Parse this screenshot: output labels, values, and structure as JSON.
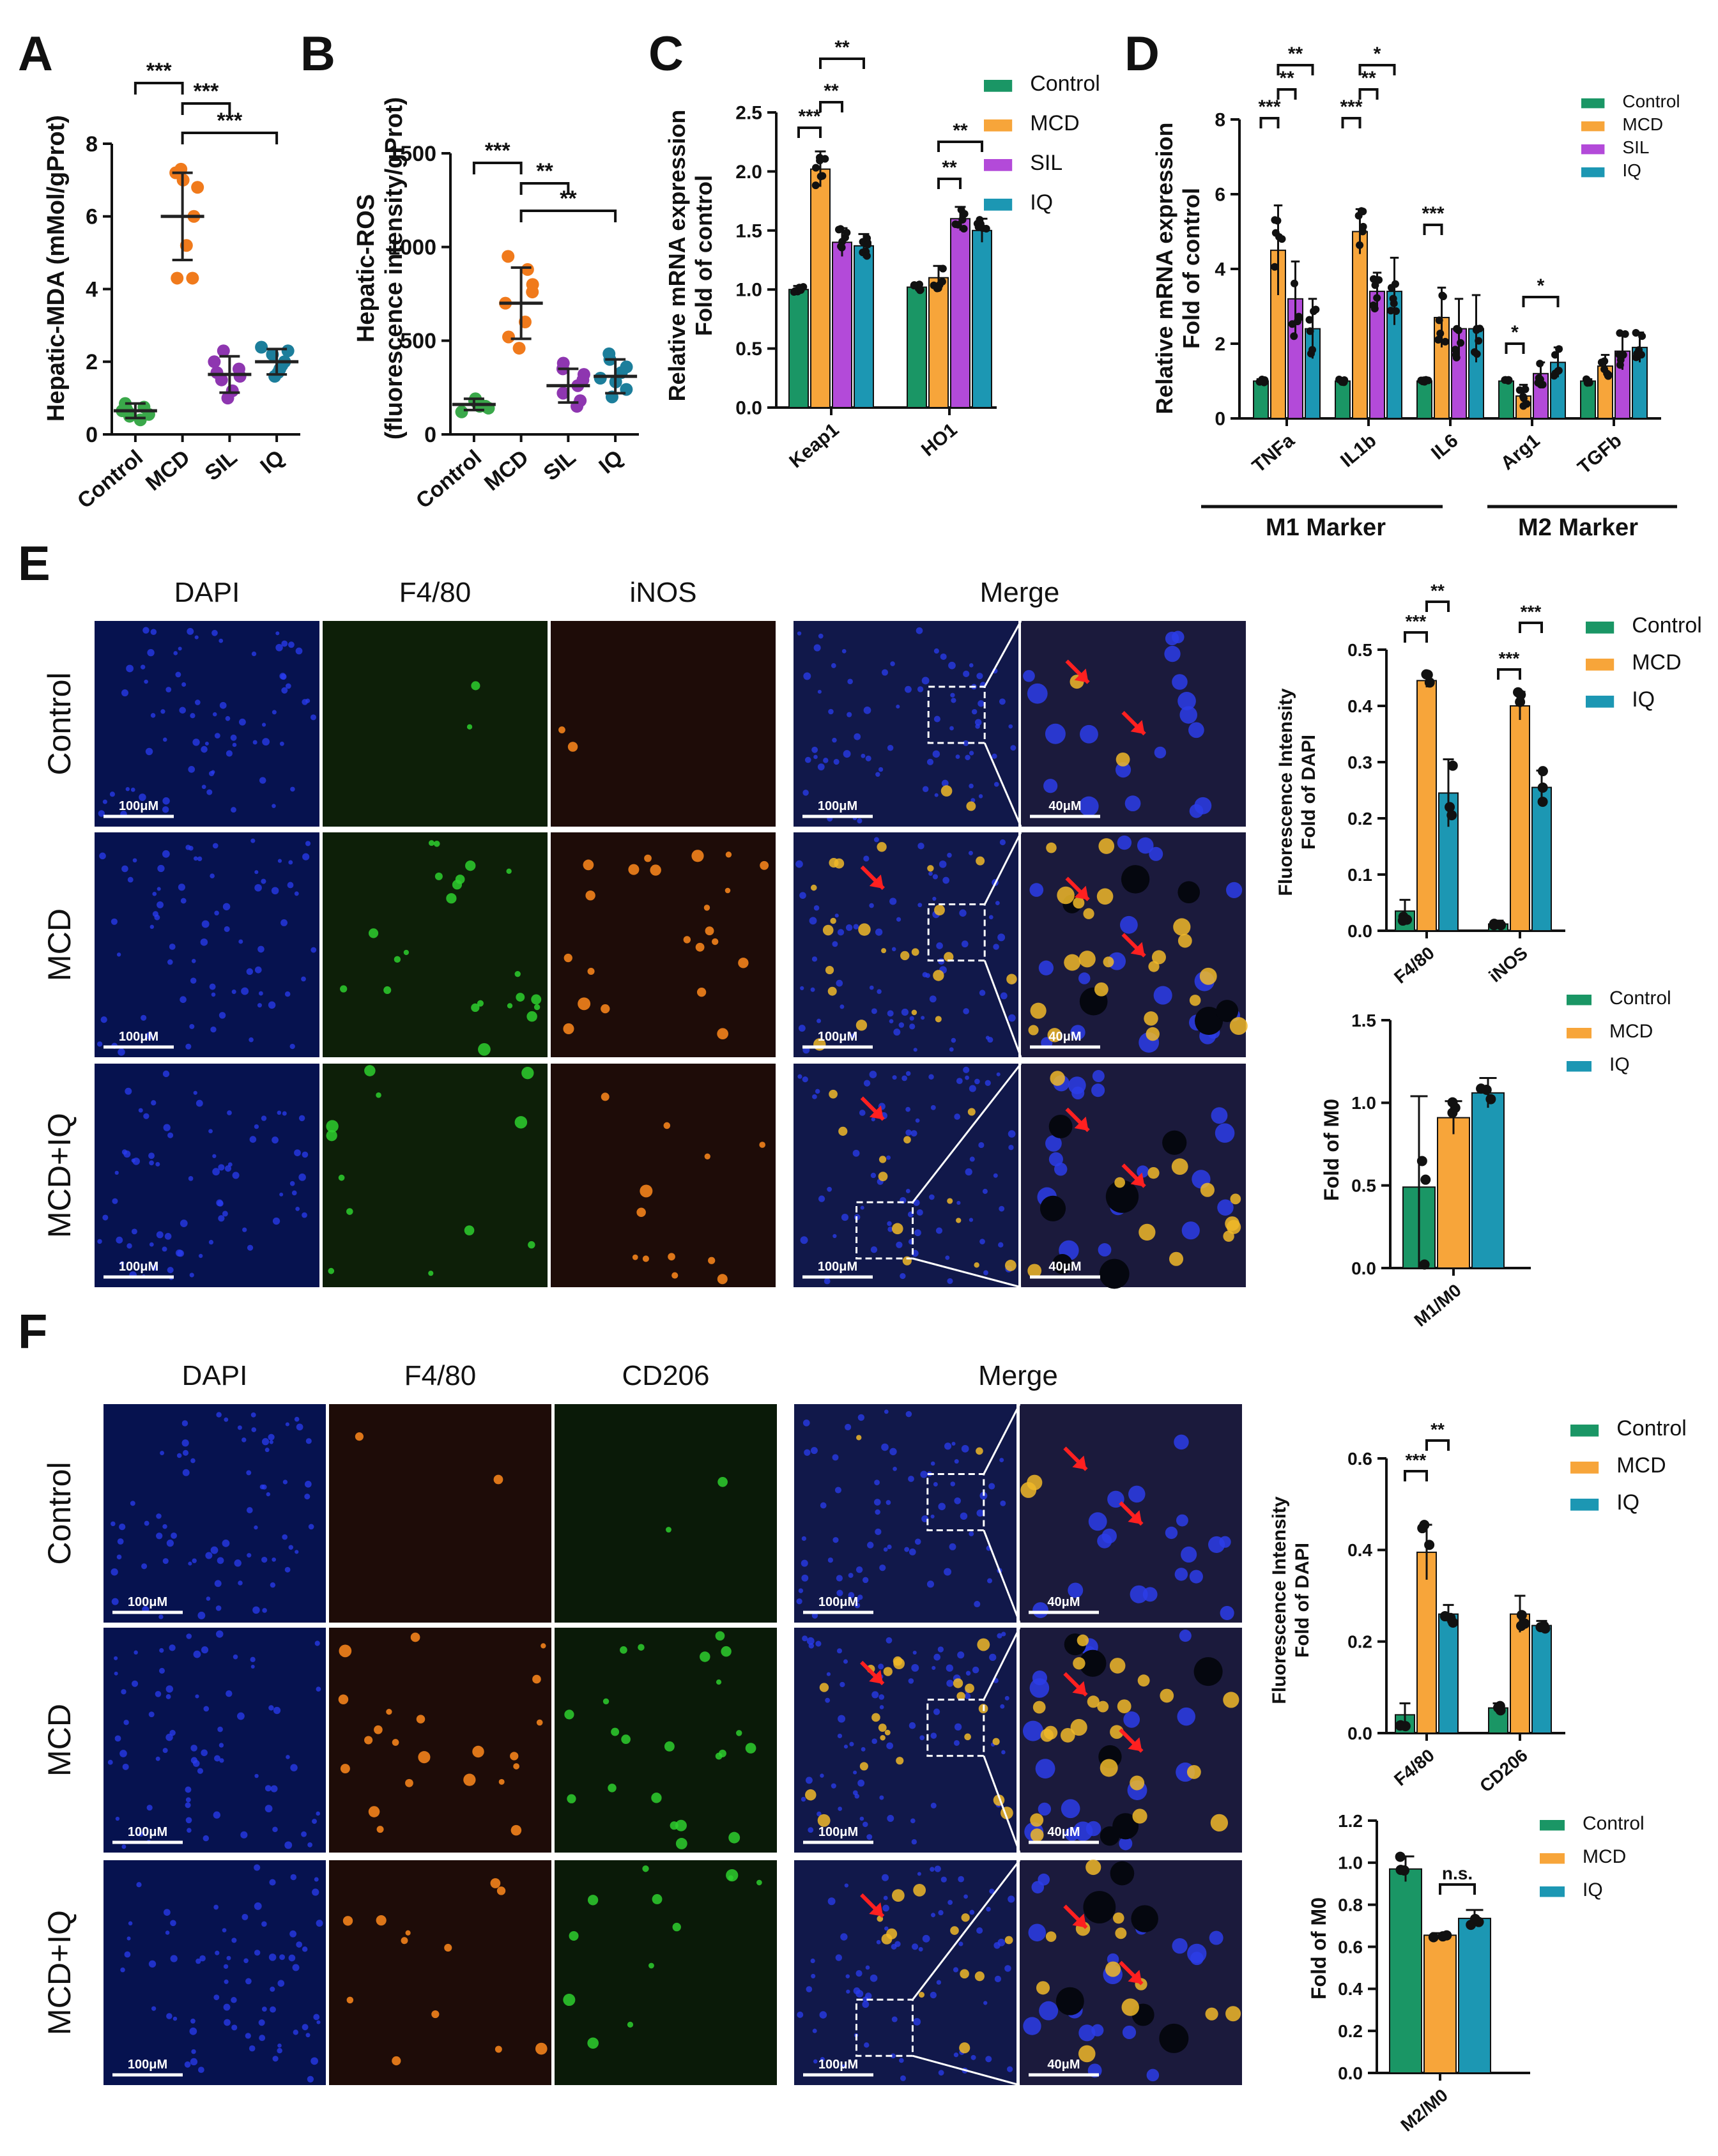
{
  "colors": {
    "control": "#1a9665",
    "mcd": "#f7a53a",
    "sil": "#b34ad9",
    "iq": "#1c97b3",
    "control_dot_a": "#3aa84a",
    "mcd_dot_a": "#f07a1c",
    "sil_dot_a": "#8e36b0",
    "iq_dot_a": "#1c7e9b",
    "arrow": "#ff2020",
    "dapi": "#1a2fd0"
  },
  "panels": {
    "A": {
      "letter": "A",
      "ylabel": "Hepatic-MDA (mMol/gProt)",
      "groups": [
        "Control",
        "MCD",
        "SIL",
        "IQ"
      ],
      "sig": [
        "***",
        "***",
        "***"
      ]
    },
    "B": {
      "letter": "B",
      "ylabel_line1": "Hepatic-ROS",
      "ylabel_line2": "(fluorescence intensity/gProt)",
      "groups": [
        "Control",
        "MCD",
        "SIL",
        "IQ"
      ],
      "sig": [
        "***",
        "**",
        "**"
      ]
    },
    "C": {
      "letter": "C",
      "ylabel_line1": "Relative mRNA expression",
      "ylabel_line2": "Fold of control",
      "legend": [
        "Control",
        "MCD",
        "SIL",
        "IQ"
      ],
      "sig": [
        "***",
        "**",
        "**",
        "**",
        "**"
      ]
    },
    "D": {
      "letter": "D",
      "ylabel_line1": "Relative mRNA expression",
      "ylabel_line2": "Fold of control",
      "legend": [
        "Control",
        "MCD",
        "SIL",
        "IQ"
      ],
      "marker_m1": "M1  Marker",
      "marker_m2": "M2  Marker",
      "sig": [
        "***",
        "**",
        "**",
        "***",
        "**",
        "*",
        "***",
        "*",
        "*"
      ]
    },
    "E": {
      "letter": "E",
      "col_headers": [
        "DAPI",
        "F4/80",
        "iNOS",
        "Merge"
      ],
      "row_labels": [
        "Control",
        "MCD",
        "MCD+IQ"
      ],
      "scale_100": "100μM",
      "scale_40": "40μM",
      "chart_top": {
        "ylabel_line1": "Fluorescence Intensity",
        "ylabel_line2": "Fold of DAPI",
        "legend": [
          "Control",
          "MCD",
          "IQ"
        ],
        "sig": [
          "***",
          "**",
          "***",
          "***"
        ]
      },
      "chart_bottom": {
        "ylabel": "Fold of M0",
        "legend": [
          "Control",
          "MCD",
          "IQ"
        ]
      }
    },
    "F": {
      "letter": "F",
      "col_headers": [
        "DAPI",
        "F4/80",
        "CD206",
        "Merge"
      ],
      "row_labels": [
        "Control",
        "MCD",
        "MCD+IQ"
      ],
      "scale_100": "100μM",
      "scale_40": "40μM",
      "chart_top": {
        "ylabel_line1": "Fluorescence Intensity",
        "ylabel_line2": "Fold of DAPI",
        "legend": [
          "Control",
          "MCD",
          "IQ"
        ],
        "sig": [
          "***",
          "**"
        ]
      },
      "chart_bottom": {
        "ylabel": "Fold of M0",
        "legend": [
          "Control",
          "MCD",
          "IQ"
        ],
        "sig": "n.s."
      }
    }
  },
  "chart_data": [
    {
      "id": "A",
      "type": "scatter",
      "ylabel": "Hepatic-MDA (mMol/gProt)",
      "categories": [
        "Control",
        "MCD",
        "SIL",
        "IQ"
      ],
      "ylim": [
        0,
        8
      ],
      "yticks": [
        0,
        2,
        4,
        6,
        8
      ],
      "means": [
        0.65,
        6.0,
        1.65,
        2.0
      ],
      "sd": [
        0.2,
        1.2,
        0.5,
        0.35
      ],
      "points": [
        [
          0.4,
          0.55,
          0.6,
          0.65,
          0.7,
          0.75,
          0.85,
          0.5
        ],
        [
          4.3,
          4.3,
          5.2,
          6.0,
          6.8,
          7.0,
          7.2,
          7.3
        ],
        [
          1.0,
          1.2,
          1.5,
          1.6,
          1.7,
          1.8,
          2.0,
          2.3
        ],
        [
          1.6,
          1.7,
          1.8,
          1.9,
          2.0,
          2.2,
          2.3,
          2.4
        ]
      ]
    },
    {
      "id": "B",
      "type": "scatter",
      "ylabel": "Hepatic-ROS (fluorescence intensity/gProt)",
      "categories": [
        "Control",
        "MCD",
        "SIL",
        "IQ"
      ],
      "ylim": [
        0,
        1500
      ],
      "yticks": [
        0,
        500,
        1000,
        1500
      ],
      "means": [
        160,
        700,
        260,
        310
      ],
      "sd": [
        30,
        190,
        90,
        90
      ],
      "points": [
        [
          120,
          140,
          150,
          160,
          170,
          180,
          190,
          150
        ],
        [
          460,
          520,
          600,
          700,
          760,
          800,
          880,
          950
        ],
        [
          150,
          180,
          220,
          260,
          290,
          320,
          350,
          380
        ],
        [
          200,
          240,
          280,
          300,
          330,
          360,
          400,
          430
        ]
      ]
    },
    {
      "id": "C",
      "type": "bar",
      "ylabel": "Relative mRNA expression Fold of control",
      "categories": [
        "Keap1",
        "HO1"
      ],
      "ylim": [
        0,
        2.5
      ],
      "yticks": [
        0.0,
        0.5,
        1.0,
        1.5,
        2.0,
        2.5
      ],
      "series": [
        {
          "name": "Control",
          "values": [
            1.0,
            1.02
          ],
          "err": [
            0.03,
            0.03
          ]
        },
        {
          "name": "MCD",
          "values": [
            2.02,
            1.1
          ],
          "err": [
            0.15,
            0.1
          ]
        },
        {
          "name": "SIL",
          "values": [
            1.4,
            1.6
          ],
          "err": [
            0.12,
            0.1
          ]
        },
        {
          "name": "IQ",
          "values": [
            1.37,
            1.5
          ],
          "err": [
            0.1,
            0.1
          ]
        }
      ]
    },
    {
      "id": "D",
      "type": "bar",
      "ylabel": "Relative mRNA expression Fold of control",
      "categories": [
        "TNFa",
        "IL1b",
        "IL6",
        "Arg1",
        "TGFb"
      ],
      "ylim": [
        0,
        8
      ],
      "yticks": [
        0,
        2,
        4,
        6,
        8
      ],
      "series": [
        {
          "name": "Control",
          "values": [
            1.0,
            1.0,
            1.0,
            1.0,
            1.0
          ],
          "err": [
            0.05,
            0.05,
            0.05,
            0.05,
            0.05
          ]
        },
        {
          "name": "MCD",
          "values": [
            4.5,
            5.0,
            2.7,
            0.6,
            1.4
          ],
          "err": [
            1.2,
            0.6,
            0.8,
            0.3,
            0.3
          ]
        },
        {
          "name": "SIL",
          "values": [
            3.2,
            3.4,
            2.4,
            1.2,
            1.8
          ],
          "err": [
            1.0,
            0.5,
            0.8,
            0.3,
            0.5
          ]
        },
        {
          "name": "IQ",
          "values": [
            2.4,
            3.4,
            2.4,
            1.5,
            1.9
          ],
          "err": [
            0.8,
            0.9,
            0.9,
            0.4,
            0.4
          ]
        }
      ]
    },
    {
      "id": "E-top",
      "type": "bar",
      "ylabel": "Fluorescence Intensity Fold of DAPI",
      "categories": [
        "F4/80",
        "iNOS"
      ],
      "ylim": [
        0,
        0.5
      ],
      "yticks": [
        0.0,
        0.1,
        0.2,
        0.3,
        0.4,
        0.5
      ],
      "series": [
        {
          "name": "Control",
          "values": [
            0.035,
            0.012
          ],
          "err": [
            0.02,
            0.006
          ]
        },
        {
          "name": "MCD",
          "values": [
            0.445,
            0.4
          ],
          "err": [
            0.012,
            0.025
          ]
        },
        {
          "name": "IQ",
          "values": [
            0.245,
            0.255
          ],
          "err": [
            0.06,
            0.03
          ]
        }
      ]
    },
    {
      "id": "E-bottom",
      "type": "bar",
      "ylabel": "Fold of M0",
      "categories": [
        "M1/M0"
      ],
      "ylim": [
        0,
        1.5
      ],
      "yticks": [
        0.0,
        0.5,
        1.0,
        1.5
      ],
      "series": [
        {
          "name": "Control",
          "values": [
            0.49
          ],
          "err": [
            0.55
          ]
        },
        {
          "name": "MCD",
          "values": [
            0.91
          ],
          "err": [
            0.1
          ]
        },
        {
          "name": "IQ",
          "values": [
            1.06
          ],
          "err": [
            0.09
          ]
        }
      ]
    },
    {
      "id": "F-top",
      "type": "bar",
      "ylabel": "Fluorescence Intensity Fold of DAPI",
      "categories": [
        "F4/80",
        "CD206"
      ],
      "ylim": [
        0,
        0.6
      ],
      "yticks": [
        0.0,
        0.2,
        0.4,
        0.6
      ],
      "series": [
        {
          "name": "Control",
          "values": [
            0.04,
            0.055
          ],
          "err": [
            0.025,
            0.01
          ]
        },
        {
          "name": "MCD",
          "values": [
            0.395,
            0.26
          ],
          "err": [
            0.06,
            0.04
          ]
        },
        {
          "name": "IQ",
          "values": [
            0.26,
            0.235
          ],
          "err": [
            0.02,
            0.01
          ]
        }
      ]
    },
    {
      "id": "F-bottom",
      "type": "bar",
      "ylabel": "Fold of M0",
      "categories": [
        "M2/M0"
      ],
      "ylim": [
        0,
        1.2
      ],
      "yticks": [
        0.0,
        0.2,
        0.4,
        0.6,
        0.8,
        1.0,
        1.2
      ],
      "series": [
        {
          "name": "Control",
          "values": [
            0.97
          ],
          "err": [
            0.06
          ]
        },
        {
          "name": "MCD",
          "values": [
            0.655
          ],
          "err": [
            0.01
          ]
        },
        {
          "name": "IQ",
          "values": [
            0.735
          ],
          "err": [
            0.04
          ]
        }
      ]
    }
  ]
}
